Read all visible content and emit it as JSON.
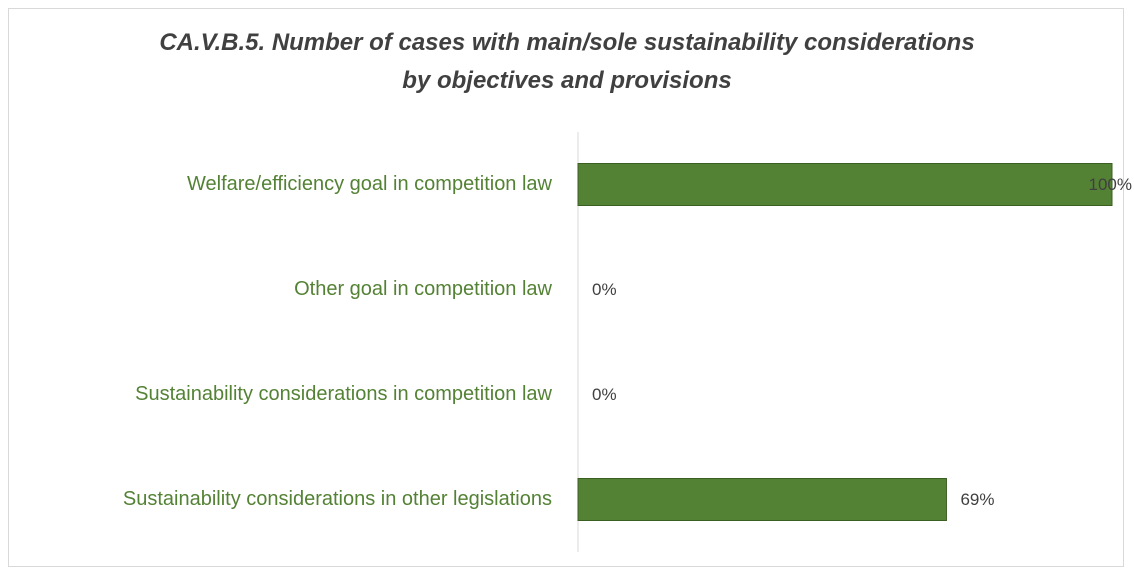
{
  "chart_data": {
    "type": "barh",
    "title": "CA.V.B.5. Number of cases with main/sole sustainability considerations\nby objectives and provisions",
    "categories": [
      "Welfare/efficiency goal in competition law",
      "Other goal in competition law",
      "Sustainability considerations in competition law",
      "Sustainability considerations in other legislations"
    ],
    "values": [
      100,
      0,
      0,
      69
    ],
    "value_labels": [
      "100%",
      "0%",
      "0%",
      "69%"
    ],
    "color": "#548235",
    "xlim": [
      0,
      100
    ]
  }
}
